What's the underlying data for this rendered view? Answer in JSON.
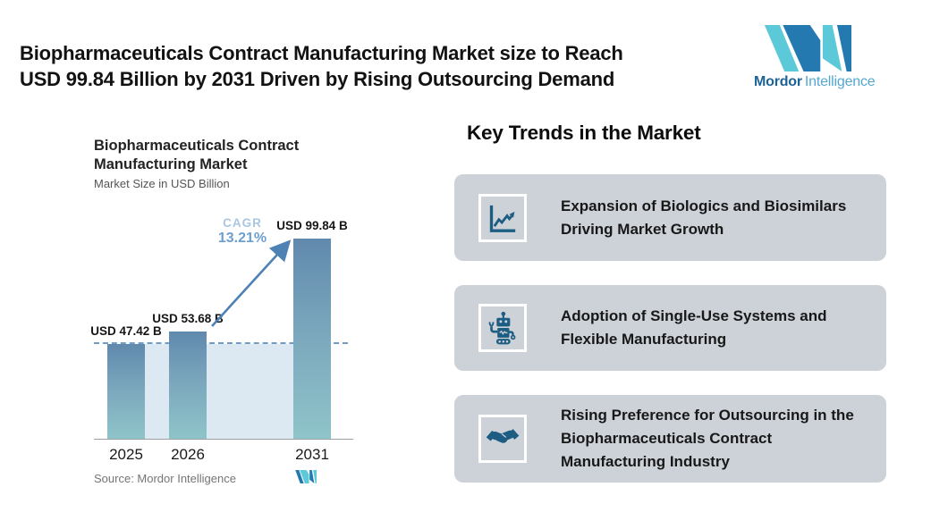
{
  "header": {
    "title_line1": "Biopharmaceuticals Contract Manufacturing Market size to Reach",
    "title_line2": "USD 99.84 Billion by 2031 Driven by Rising Outsourcing Demand",
    "brand": {
      "name_bold": "Mordor",
      "name_regular": "Intelligence"
    }
  },
  "chart": {
    "title_line1": "Biopharmaceuticals Contract",
    "title_line2": "Manufacturing Market",
    "subtitle": "Market Size in USD Billion",
    "cagr_label": "CAGR",
    "cagr_value": "13.21%",
    "source": "Source: Mordor Intelligence"
  },
  "chart_data": {
    "type": "bar",
    "categories": [
      "2025",
      "2026",
      "2031"
    ],
    "values": [
      47.42,
      53.68,
      99.84
    ],
    "value_labels": [
      "USD 47.42 B",
      "USD 53.68 B",
      "USD 99.84 B"
    ],
    "title": "Biopharmaceuticals Contract Manufacturing Market",
    "subtitle": "Market Size in USD Billion",
    "xlabel": "",
    "ylabel": "Market Size (USD Billion)",
    "ylim": [
      0,
      110
    ],
    "grid": false,
    "legend": "none",
    "annotations": [
      "CAGR 13.21%"
    ],
    "reference_line_value": 47.42,
    "source": "Mordor Intelligence"
  },
  "trends": {
    "heading": "Key Trends in the Market",
    "cards": [
      {
        "icon": "trend-chart-icon",
        "text": "Expansion of Biologics and Biosimilars Driving Market Growth"
      },
      {
        "icon": "robot-icon",
        "text": "Adoption of Single-Use Systems and Flexible Manufacturing"
      },
      {
        "icon": "handshake-icon",
        "text": "Rising Preference for Outsourcing in the Biopharmaceuticals Contract Manufacturing Industry"
      }
    ]
  },
  "colors": {
    "teal": "#5cc9d9",
    "brand_blue": "#2579b1",
    "brand_text_blue": "#1d6396",
    "brand_text_light": "#53a8d2",
    "icon_blue": "#1e5d83",
    "card_bg": "#cdd2d8",
    "bar_top": "#6089ad",
    "bar_bottom": "#8fc4c9",
    "band": "#dce9f3",
    "dash": "#6f9dc8",
    "arrow": "#4e81b4",
    "cagr_label": "#a9c6e2",
    "cagr_value": "#6d9fce",
    "axis": "#9aa0a6",
    "source_text": "#757575",
    "text_dark": "#121212"
  }
}
